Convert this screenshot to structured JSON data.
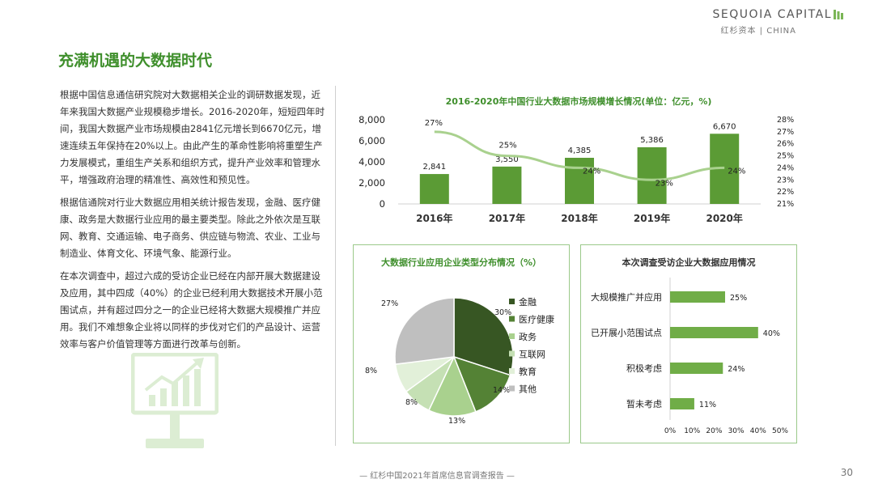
{
  "brand": {
    "name_en": "SEQUOIA CAPITAL",
    "name_cn": "红杉资本 | CHINA",
    "color": "#7ab555"
  },
  "page": {
    "title": "充满机遇的大数据时代",
    "paragraphs": [
      "根据中国信息通信研究院对大数据相关企业的调研数据发现，近年来我国大数据产业规模稳步增长。2016-2020年，短短四年时间，我国大数据产业市场规模由2841亿元增长到6670亿元，增速连续五年保持在20%以上。由此产生的革命性影响将重塑生产力发展模式，重组生产关系和组织方式，提升产业效率和管理水平，增强政府治理的精准性、高效性和预见性。",
      "根据信通院对行业大数据应用相关统计报告发现，金融、医疗健康、政务是大数据行业应用的最主要类型。除此之外依次是互联网、教育、交通运输、电子商务、供应链与物流、农业、工业与制造业、体育文化、环境气象、能源行业。",
      "在本次调查中，超过六成的受访企业已经在内部开展大数据建设及应用，其中四成（40%）的企业已经利用大数据技术开展小范围试点，并有超过四分之一的企业已经将大数据大规模推广并应用。我们不难想象企业将以同样的步伐对它们的产品设计、运营效率与客户价值管理等方面进行改革与创新。"
    ],
    "footer": "— 红杉中国2021年首席信息官调查报告 —",
    "page_number": "30",
    "monitor_icon": "growth-chart-monitor-icon"
  },
  "chart_data": [
    {
      "type": "bar",
      "title": "2016-2020年中国行业大数据市场规模增长情况(单位：亿元，%)",
      "categories": [
        "2016年",
        "2017年",
        "2018年",
        "2019年",
        "2020年"
      ],
      "values": [
        2841,
        3550,
        4385,
        5386,
        6670
      ],
      "value_labels": [
        "2,841",
        "3,550",
        "4,385",
        "5,386",
        "6,670"
      ],
      "ylim": [
        0,
        8000
      ],
      "y_ticks": [
        "0",
        "2,000",
        "4,000",
        "6,000",
        "8,000"
      ],
      "line": {
        "type": "line",
        "values": [
          27,
          25,
          24,
          23,
          24
        ],
        "labels": [
          "27%",
          "25%",
          "24%",
          "23%",
          "24%"
        ],
        "ylim": [
          21,
          28
        ]
      },
      "y2_ticks": [
        "21%",
        "22%",
        "23%",
        "24%",
        "25%",
        "26%",
        "27%",
        "28%"
      ],
      "bar_color": "#5b9b35",
      "line_color": "#a9d18e"
    },
    {
      "type": "pie",
      "title": "大数据行业应用企业类型分布情况（%）",
      "categories": [
        "金融",
        "医疗健康",
        "政务",
        "互联网",
        "教育",
        "其他"
      ],
      "values": [
        30,
        14,
        13,
        8,
        8,
        27
      ],
      "labels": [
        "30%",
        "14%",
        "13%",
        "8%",
        "8%",
        "27%"
      ],
      "colors": [
        "#375623",
        "#548235",
        "#a9d18e",
        "#c5e0b4",
        "#e2f0d9",
        "#bfbfbf"
      ],
      "legend": "right"
    },
    {
      "type": "bar",
      "orientation": "horizontal",
      "title": "本次调查受访企业大数据应用情况",
      "categories": [
        "大规模推广并应用",
        "已开展小范围试点",
        "积极考虑",
        "暂未考虑"
      ],
      "values": [
        25,
        40,
        24,
        11
      ],
      "labels": [
        "25%",
        "40%",
        "24%",
        "11%"
      ],
      "xlim": [
        0,
        50
      ],
      "x_ticks": [
        "0%",
        "10%",
        "20%",
        "30%",
        "40%",
        "50%"
      ],
      "bar_color": "#70ad47"
    }
  ]
}
